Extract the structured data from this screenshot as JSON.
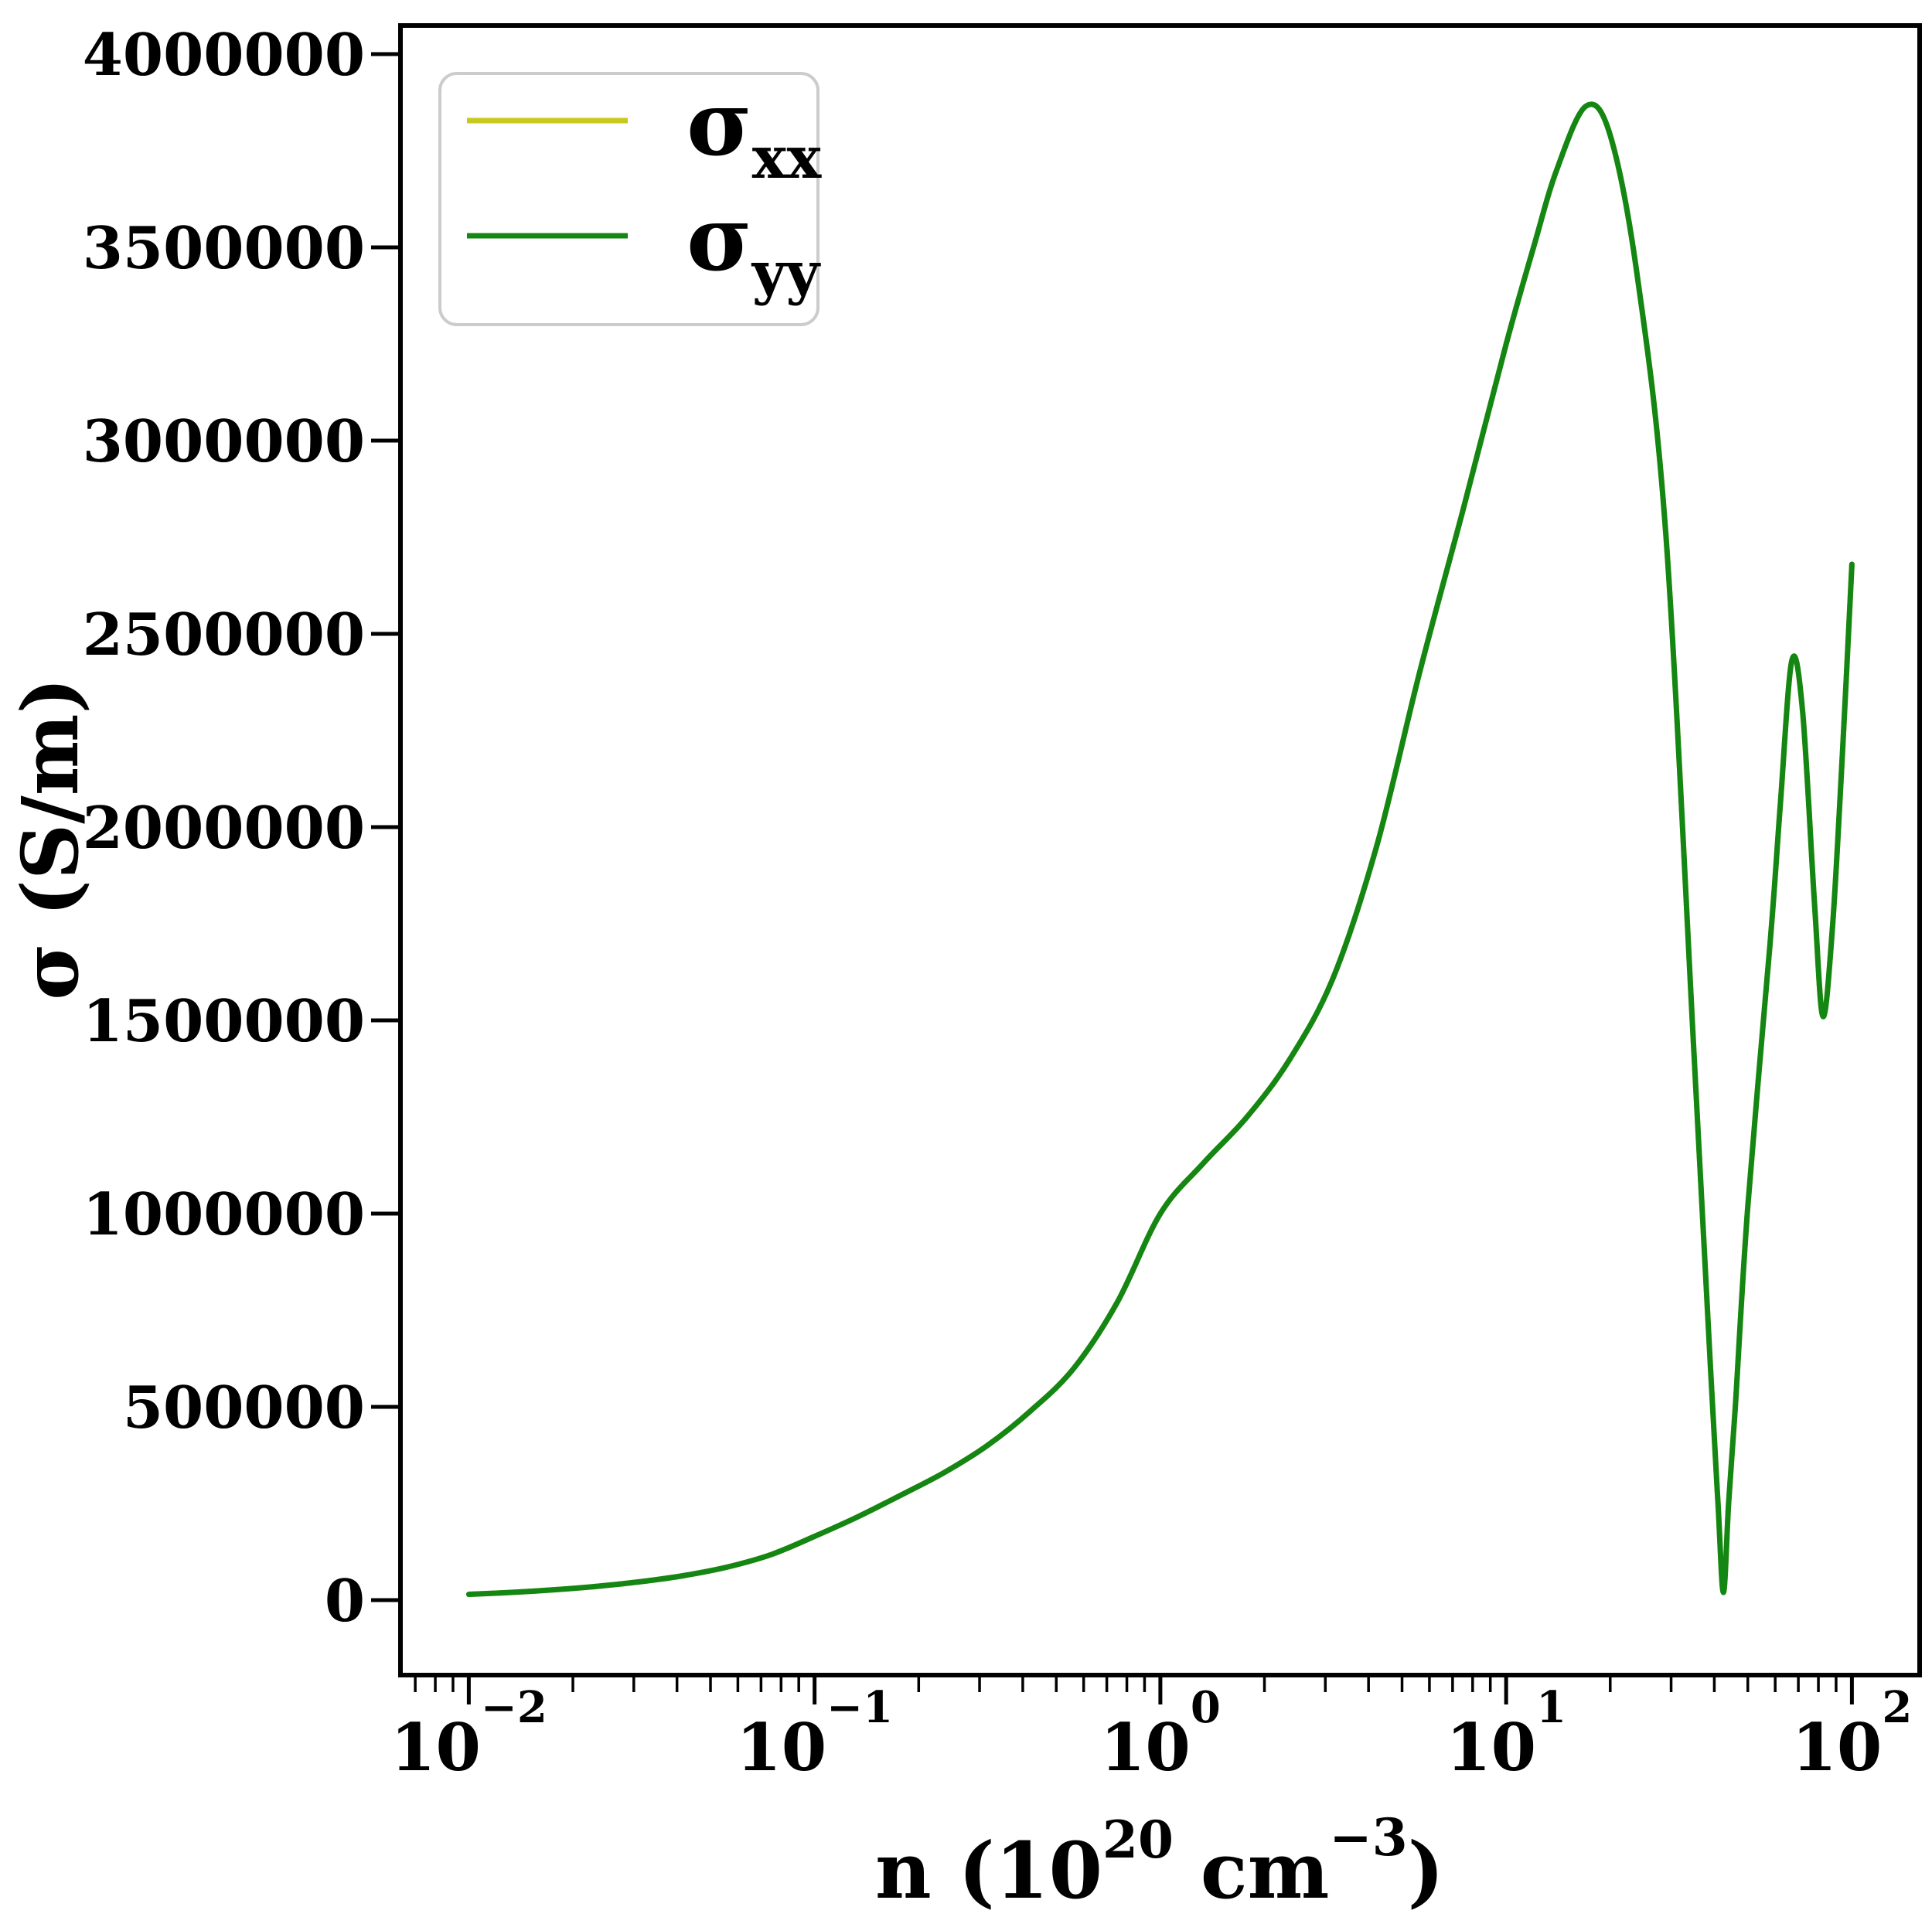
{
  "figure": {
    "background": "#ffffff",
    "frame_color": "#000000"
  },
  "axes": {
    "x": {
      "scale": "log",
      "label_parts": [
        "n (10",
        "20",
        " cm",
        "−3",
        ")"
      ],
      "label_full": "n (10^20 cm^-3)",
      "major_ticks": [
        {
          "value": 0.01,
          "base": "10",
          "exp": "−2"
        },
        {
          "value": 0.1,
          "base": "10",
          "exp": "−1"
        },
        {
          "value": 1,
          "base": "10",
          "exp": "0"
        },
        {
          "value": 10,
          "base": "10",
          "exp": "1"
        },
        {
          "value": 100,
          "base": "10",
          "exp": "2"
        }
      ]
    },
    "y": {
      "scale": "linear",
      "label": "σ (S/m)",
      "tick_values": [
        0,
        500000,
        1000000,
        1500000,
        2000000,
        2500000,
        3000000,
        3500000,
        4000000
      ],
      "tick_labels": [
        "0",
        "500000",
        "1000000",
        "1500000",
        "2000000",
        "2500000",
        "3000000",
        "3500000",
        "4000000"
      ]
    }
  },
  "legend": {
    "border_color": "#cccccc",
    "background": "#ffffff",
    "entries": [
      {
        "base": "σ",
        "sub": "xx",
        "color": "#c8c81e"
      },
      {
        "base": "σ",
        "sub": "yy",
        "color": "#148614"
      }
    ]
  },
  "chart_data": {
    "type": "line",
    "title": "",
    "xlabel": "n (10^20 cm^-3)",
    "ylabel": "σ (S/m)",
    "xscale": "log",
    "xlim": [
      0.0063,
      158
    ],
    "ylim": [
      -194000,
      4074000
    ],
    "grid": false,
    "legend_position": "upper left",
    "x": [
      0.01,
      0.0133,
      0.0178,
      0.0237,
      0.0316,
      0.0422,
      0.0562,
      0.075,
      0.1,
      0.133,
      0.178,
      0.237,
      0.316,
      0.422,
      0.562,
      0.75,
      1.0,
      1.33,
      1.78,
      2.37,
      3.16,
      4.22,
      5.62,
      7.5,
      10,
      12,
      14,
      17,
      20,
      24,
      29,
      35,
      39,
      41,
      42.5,
      44,
      46,
      50,
      58,
      62,
      67,
      72,
      78,
      82.5,
      88,
      94,
      100
    ],
    "series": [
      {
        "name": "σ_xx",
        "color": "#c8c81e",
        "values": [
          15000,
          20000,
          27000,
          36000,
          48000,
          64000,
          86000,
          118000,
          165000,
          215000,
          272000,
          330000,
          400000,
          490000,
          600000,
          770000,
          1000000,
          1130000,
          1250000,
          1400000,
          1610000,
          1950000,
          2400000,
          2820000,
          3250000,
          3500000,
          3700000,
          3865000,
          3790000,
          3420000,
          2750000,
          1400000,
          600000,
          250000,
          20000,
          250000,
          500000,
          1020000,
          1700000,
          2050000,
          2430000,
          2300000,
          1800000,
          1510000,
          1750000,
          2200000,
          2680000
        ]
      },
      {
        "name": "σ_yy",
        "color": "#148614",
        "values": [
          15000,
          20000,
          27000,
          36000,
          48000,
          64000,
          86000,
          118000,
          165000,
          215000,
          272000,
          330000,
          400000,
          490000,
          600000,
          770000,
          1000000,
          1130000,
          1250000,
          1400000,
          1610000,
          1950000,
          2400000,
          2820000,
          3250000,
          3500000,
          3700000,
          3865000,
          3790000,
          3420000,
          2750000,
          1400000,
          600000,
          250000,
          20000,
          250000,
          500000,
          1020000,
          1700000,
          2050000,
          2430000,
          2300000,
          1800000,
          1510000,
          1750000,
          2200000,
          2680000
        ]
      }
    ]
  }
}
